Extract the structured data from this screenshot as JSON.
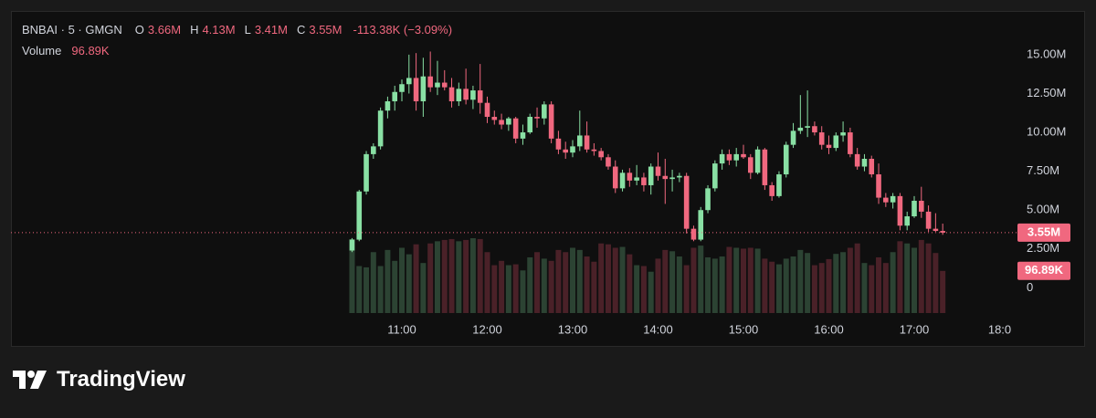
{
  "header": {
    "symbol": "BNBAI · 5 · GMGN",
    "o_label": "O",
    "o": "3.66M",
    "h_label": "H",
    "h": "4.13M",
    "l_label": "L",
    "l": "3.41M",
    "c_label": "C",
    "c": "3.55M",
    "change": "-113.38K (−3.09%)",
    "volume_label": "Volume",
    "volume": "96.89K"
  },
  "brand": "TradingView",
  "chart_data": {
    "type": "candlestick",
    "up_color": "#89e0a4",
    "down_color": "#f0687f",
    "volume_up_color": "#2c4333",
    "volume_down_color": "#4a2128",
    "x": [
      625,
      630,
      635,
      640,
      645,
      650,
      655,
      660,
      665,
      670,
      675,
      680,
      685,
      690,
      695,
      700,
      705,
      710,
      715,
      720,
      725,
      730,
      735,
      740,
      745,
      750,
      755,
      760,
      765,
      770,
      775,
      780,
      785,
      790,
      795,
      800,
      805,
      810,
      815,
      820,
      825,
      830,
      835,
      840,
      845,
      850,
      855,
      860,
      865,
      870,
      875,
      880,
      885,
      890,
      895,
      900,
      905,
      910,
      915,
      920,
      925,
      930,
      935,
      940,
      945,
      950,
      955,
      960,
      965,
      970,
      975,
      980,
      985,
      990,
      995,
      1000,
      1005,
      1010,
      1015,
      1020,
      1025,
      1030,
      1035,
      1040
    ],
    "open": [
      2.4,
      3.1,
      6.2,
      8.6,
      9.1,
      11.4,
      12.0,
      12.6,
      13.1,
      13.5,
      12.0,
      13.6,
      12.9,
      13.2,
      12.9,
      12.0,
      12.8,
      12.1,
      12.7,
      11.9,
      11.0,
      10.8,
      10.5,
      10.9,
      9.6,
      10.0,
      11.0,
      10.9,
      11.8,
      9.6,
      8.9,
      8.7,
      9.1,
      9.8,
      8.9,
      8.8,
      8.4,
      7.8,
      6.4,
      7.4,
      6.9,
      7.1,
      6.6,
      7.8,
      7.2,
      7.0,
      7.1,
      7.2,
      3.8,
      3.1,
      5.0,
      6.4,
      8.0,
      8.6,
      8.2,
      8.6,
      8.4,
      7.4,
      8.9,
      6.6,
      5.9,
      7.3,
      9.2,
      10.1,
      10.3,
      10.4,
      10.0,
      9.2,
      9.0,
      9.8,
      10.0,
      8.6,
      7.8,
      8.3,
      7.3,
      5.8,
      5.5,
      5.9,
      4.0,
      4.6,
      5.6,
      4.9,
      3.8,
      3.66
    ],
    "high": [
      3.2,
      6.3,
      8.8,
      9.3,
      11.6,
      12.3,
      13.0,
      13.4,
      15.0,
      15.1,
      14.8,
      15.2,
      14.6,
      14.0,
      13.5,
      13.2,
      14.1,
      13.0,
      14.4,
      12.3,
      11.4,
      11.2,
      11.0,
      11.0,
      10.5,
      11.2,
      11.6,
      12.0,
      12.0,
      10.1,
      9.4,
      9.5,
      11.4,
      10.7,
      9.3,
      9.0,
      8.6,
      8.2,
      7.6,
      7.7,
      7.9,
      7.4,
      8.0,
      8.7,
      8.3,
      7.6,
      7.4,
      7.4,
      4.0,
      5.2,
      6.6,
      8.2,
      8.9,
      8.9,
      9.0,
      9.2,
      8.6,
      9.1,
      9.0,
      6.8,
      7.5,
      9.4,
      10.6,
      12.4,
      12.7,
      10.7,
      10.4,
      9.8,
      10.0,
      10.7,
      10.3,
      9.0,
      8.6,
      8.5,
      8.0,
      6.1,
      6.1,
      6.1,
      4.9,
      5.9,
      6.5,
      5.3,
      4.8,
      4.13
    ],
    "low": [
      2.3,
      3.0,
      6.0,
      8.3,
      8.9,
      10.9,
      11.4,
      12.0,
      12.5,
      11.4,
      11.0,
      12.6,
      12.4,
      12.7,
      11.6,
      11.7,
      11.8,
      11.5,
      11.2,
      10.6,
      10.5,
      10.2,
      10.1,
      9.3,
      9.2,
      9.9,
      10.3,
      10.5,
      9.3,
      8.6,
      8.3,
      8.4,
      8.8,
      8.7,
      8.5,
      8.2,
      7.6,
      6.1,
      6.2,
      6.5,
      6.6,
      6.2,
      6.0,
      6.9,
      5.4,
      6.2,
      6.8,
      3.5,
      3.0,
      3.0,
      4.8,
      6.2,
      7.6,
      7.9,
      7.8,
      8.3,
      7.0,
      7.3,
      6.3,
      5.6,
      5.8,
      7.1,
      9.0,
      9.9,
      9.7,
      9.8,
      8.9,
      8.6,
      8.8,
      9.4,
      8.4,
      7.6,
      7.5,
      7.1,
      5.4,
      5.2,
      5.1,
      3.7,
      3.7,
      4.5,
      4.5,
      3.6,
      3.6,
      3.41
    ],
    "close": [
      3.1,
      6.2,
      8.6,
      9.1,
      11.4,
      12.0,
      12.6,
      13.1,
      13.5,
      12.0,
      13.6,
      12.9,
      13.2,
      12.9,
      12.0,
      12.8,
      12.1,
      12.7,
      11.9,
      11.0,
      10.8,
      10.5,
      10.9,
      9.6,
      10.0,
      11.0,
      10.9,
      11.8,
      9.6,
      8.9,
      8.7,
      9.1,
      9.8,
      8.9,
      8.8,
      8.4,
      7.8,
      6.4,
      7.4,
      6.9,
      7.1,
      6.6,
      7.8,
      7.2,
      7.0,
      7.1,
      7.2,
      3.8,
      3.1,
      5.0,
      6.4,
      8.0,
      8.6,
      8.2,
      8.6,
      8.4,
      7.4,
      8.9,
      6.6,
      5.9,
      7.3,
      9.2,
      10.1,
      10.3,
      10.4,
      10.0,
      9.2,
      9.0,
      9.8,
      10.0,
      8.6,
      7.8,
      8.3,
      7.3,
      5.8,
      5.5,
      5.9,
      4.0,
      4.6,
      5.6,
      4.9,
      3.8,
      3.66,
      3.55
    ],
    "volume": [
      170,
      108,
      105,
      140,
      108,
      145,
      120,
      150,
      135,
      158,
      115,
      160,
      165,
      168,
      170,
      165,
      168,
      172,
      170,
      140,
      110,
      120,
      110,
      112,
      98,
      128,
      140,
      125,
      120,
      145,
      140,
      150,
      145,
      130,
      118,
      160,
      158,
      150,
      152,
      135,
      110,
      108,
      95,
      125,
      145,
      142,
      130,
      110,
      150,
      155,
      128,
      125,
      130,
      152,
      150,
      148,
      150,
      148,
      125,
      118,
      112,
      125,
      130,
      145,
      138,
      110,
      115,
      124,
      136,
      140,
      150,
      160,
      115,
      110,
      128,
      115,
      140,
      165,
      160,
      150,
      168,
      160,
      138,
      96.89
    ],
    "last_price": {
      "value": 3.55,
      "label": "3.55M"
    },
    "last_volume_label": "96.89K",
    "ylim": [
      -0.8,
      17.4
    ],
    "yticks": [
      0,
      {
        "value": 2.5,
        "label": "2.50M"
      },
      {
        "value": 5,
        "label": "5.00M"
      },
      {
        "value": 7.5,
        "label": "7.50M"
      },
      {
        "value": 10,
        "label": "10.00M"
      },
      {
        "value": 12.5,
        "label": "12.50M"
      },
      {
        "value": 15,
        "label": "15.00M"
      }
    ],
    "xticks": [
      {
        "value": 660,
        "label": "11:00"
      },
      {
        "value": 720,
        "label": "12:00"
      },
      {
        "value": 780,
        "label": "13:00"
      },
      {
        "value": 840,
        "label": "14:00"
      },
      {
        "value": 900,
        "label": "15:00"
      },
      {
        "value": 960,
        "label": "16:00"
      },
      {
        "value": 1020,
        "label": "17:00"
      },
      {
        "value": 1080,
        "label": "18:0"
      }
    ]
  }
}
